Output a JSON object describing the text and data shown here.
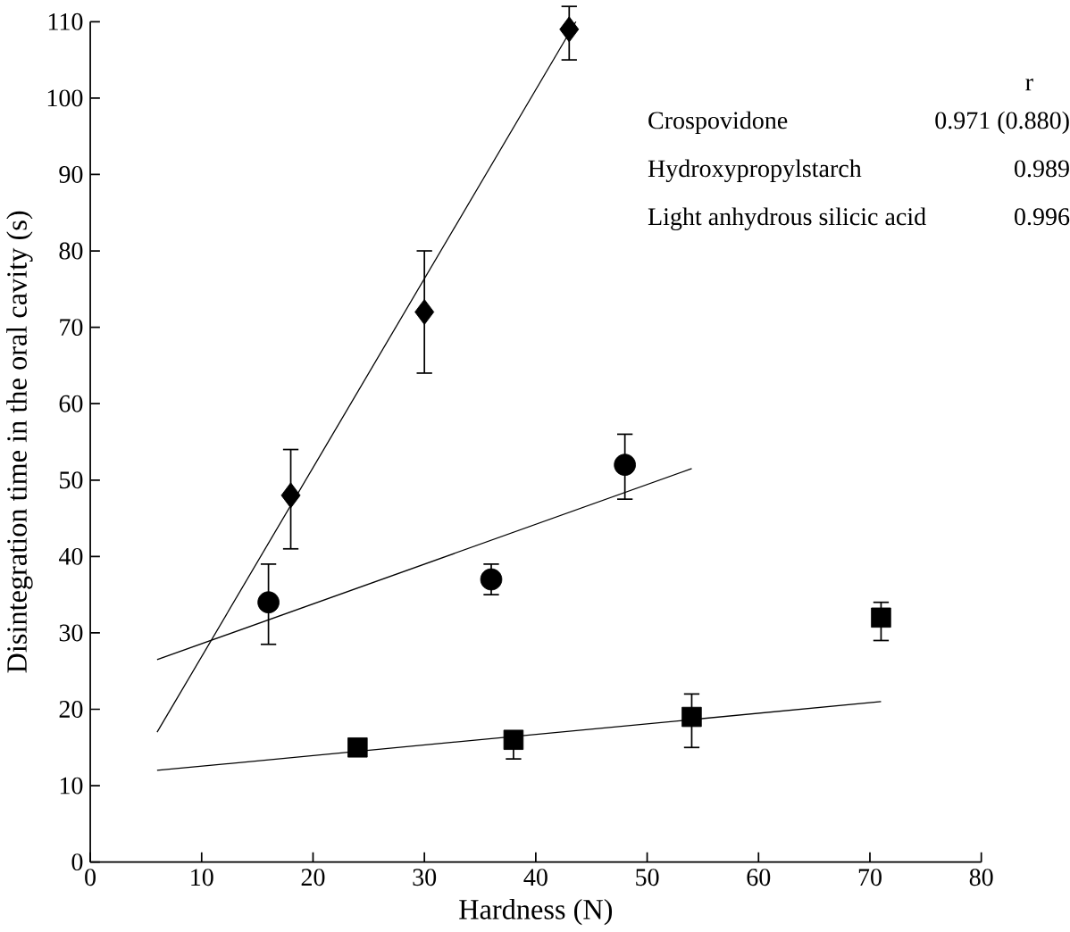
{
  "chart_data": {
    "type": "scatter",
    "xlabel": "Hardness (N)",
    "ylabel": "Disintegration time in the oral cavity (s)",
    "xlim": [
      0,
      80
    ],
    "ylim": [
      0,
      110
    ],
    "xticks": [
      0,
      10,
      20,
      30,
      40,
      50,
      60,
      70,
      80
    ],
    "yticks": [
      0,
      10,
      20,
      30,
      40,
      50,
      60,
      70,
      80,
      90,
      100,
      110
    ],
    "grid": false,
    "series": [
      {
        "marker": "diamond",
        "color": "#000000",
        "x": [
          18,
          30,
          43
        ],
        "values": [
          48,
          72,
          109
        ],
        "errors": [
          [
            41,
            54
          ],
          [
            64,
            80
          ],
          [
            105,
            112
          ]
        ]
      },
      {
        "marker": "circle",
        "color": "#000000",
        "x": [
          16,
          36,
          48
        ],
        "values": [
          34,
          37,
          52
        ],
        "errors": [
          [
            28.5,
            39
          ],
          [
            35,
            39
          ],
          [
            47.5,
            56
          ]
        ]
      },
      {
        "marker": "square",
        "color": "#000000",
        "x": [
          24,
          38,
          54,
          71
        ],
        "values": [
          15,
          16,
          19,
          32
        ],
        "errors": [
          null,
          [
            13.5,
            17
          ],
          [
            15,
            22
          ],
          [
            29,
            34
          ]
        ]
      },
      {
        "type": "line",
        "marker": "none",
        "color": "#000000",
        "x": [
          6,
          43.6
        ],
        "values": [
          17,
          110
        ]
      },
      {
        "type": "line",
        "marker": "none",
        "color": "#000000",
        "x": [
          6,
          54
        ],
        "values": [
          26.5,
          51.5
        ]
      },
      {
        "type": "line",
        "marker": "none",
        "color": "#000000",
        "x": [
          6,
          71
        ],
        "values": [
          12,
          21
        ]
      }
    ],
    "annotations": [
      "r",
      "Crospovidone",
      "0.971 (0.880)",
      "Hydroxypropylstarch",
      "0.989",
      "Light anhydrous silicic acid",
      "0.996"
    ]
  }
}
